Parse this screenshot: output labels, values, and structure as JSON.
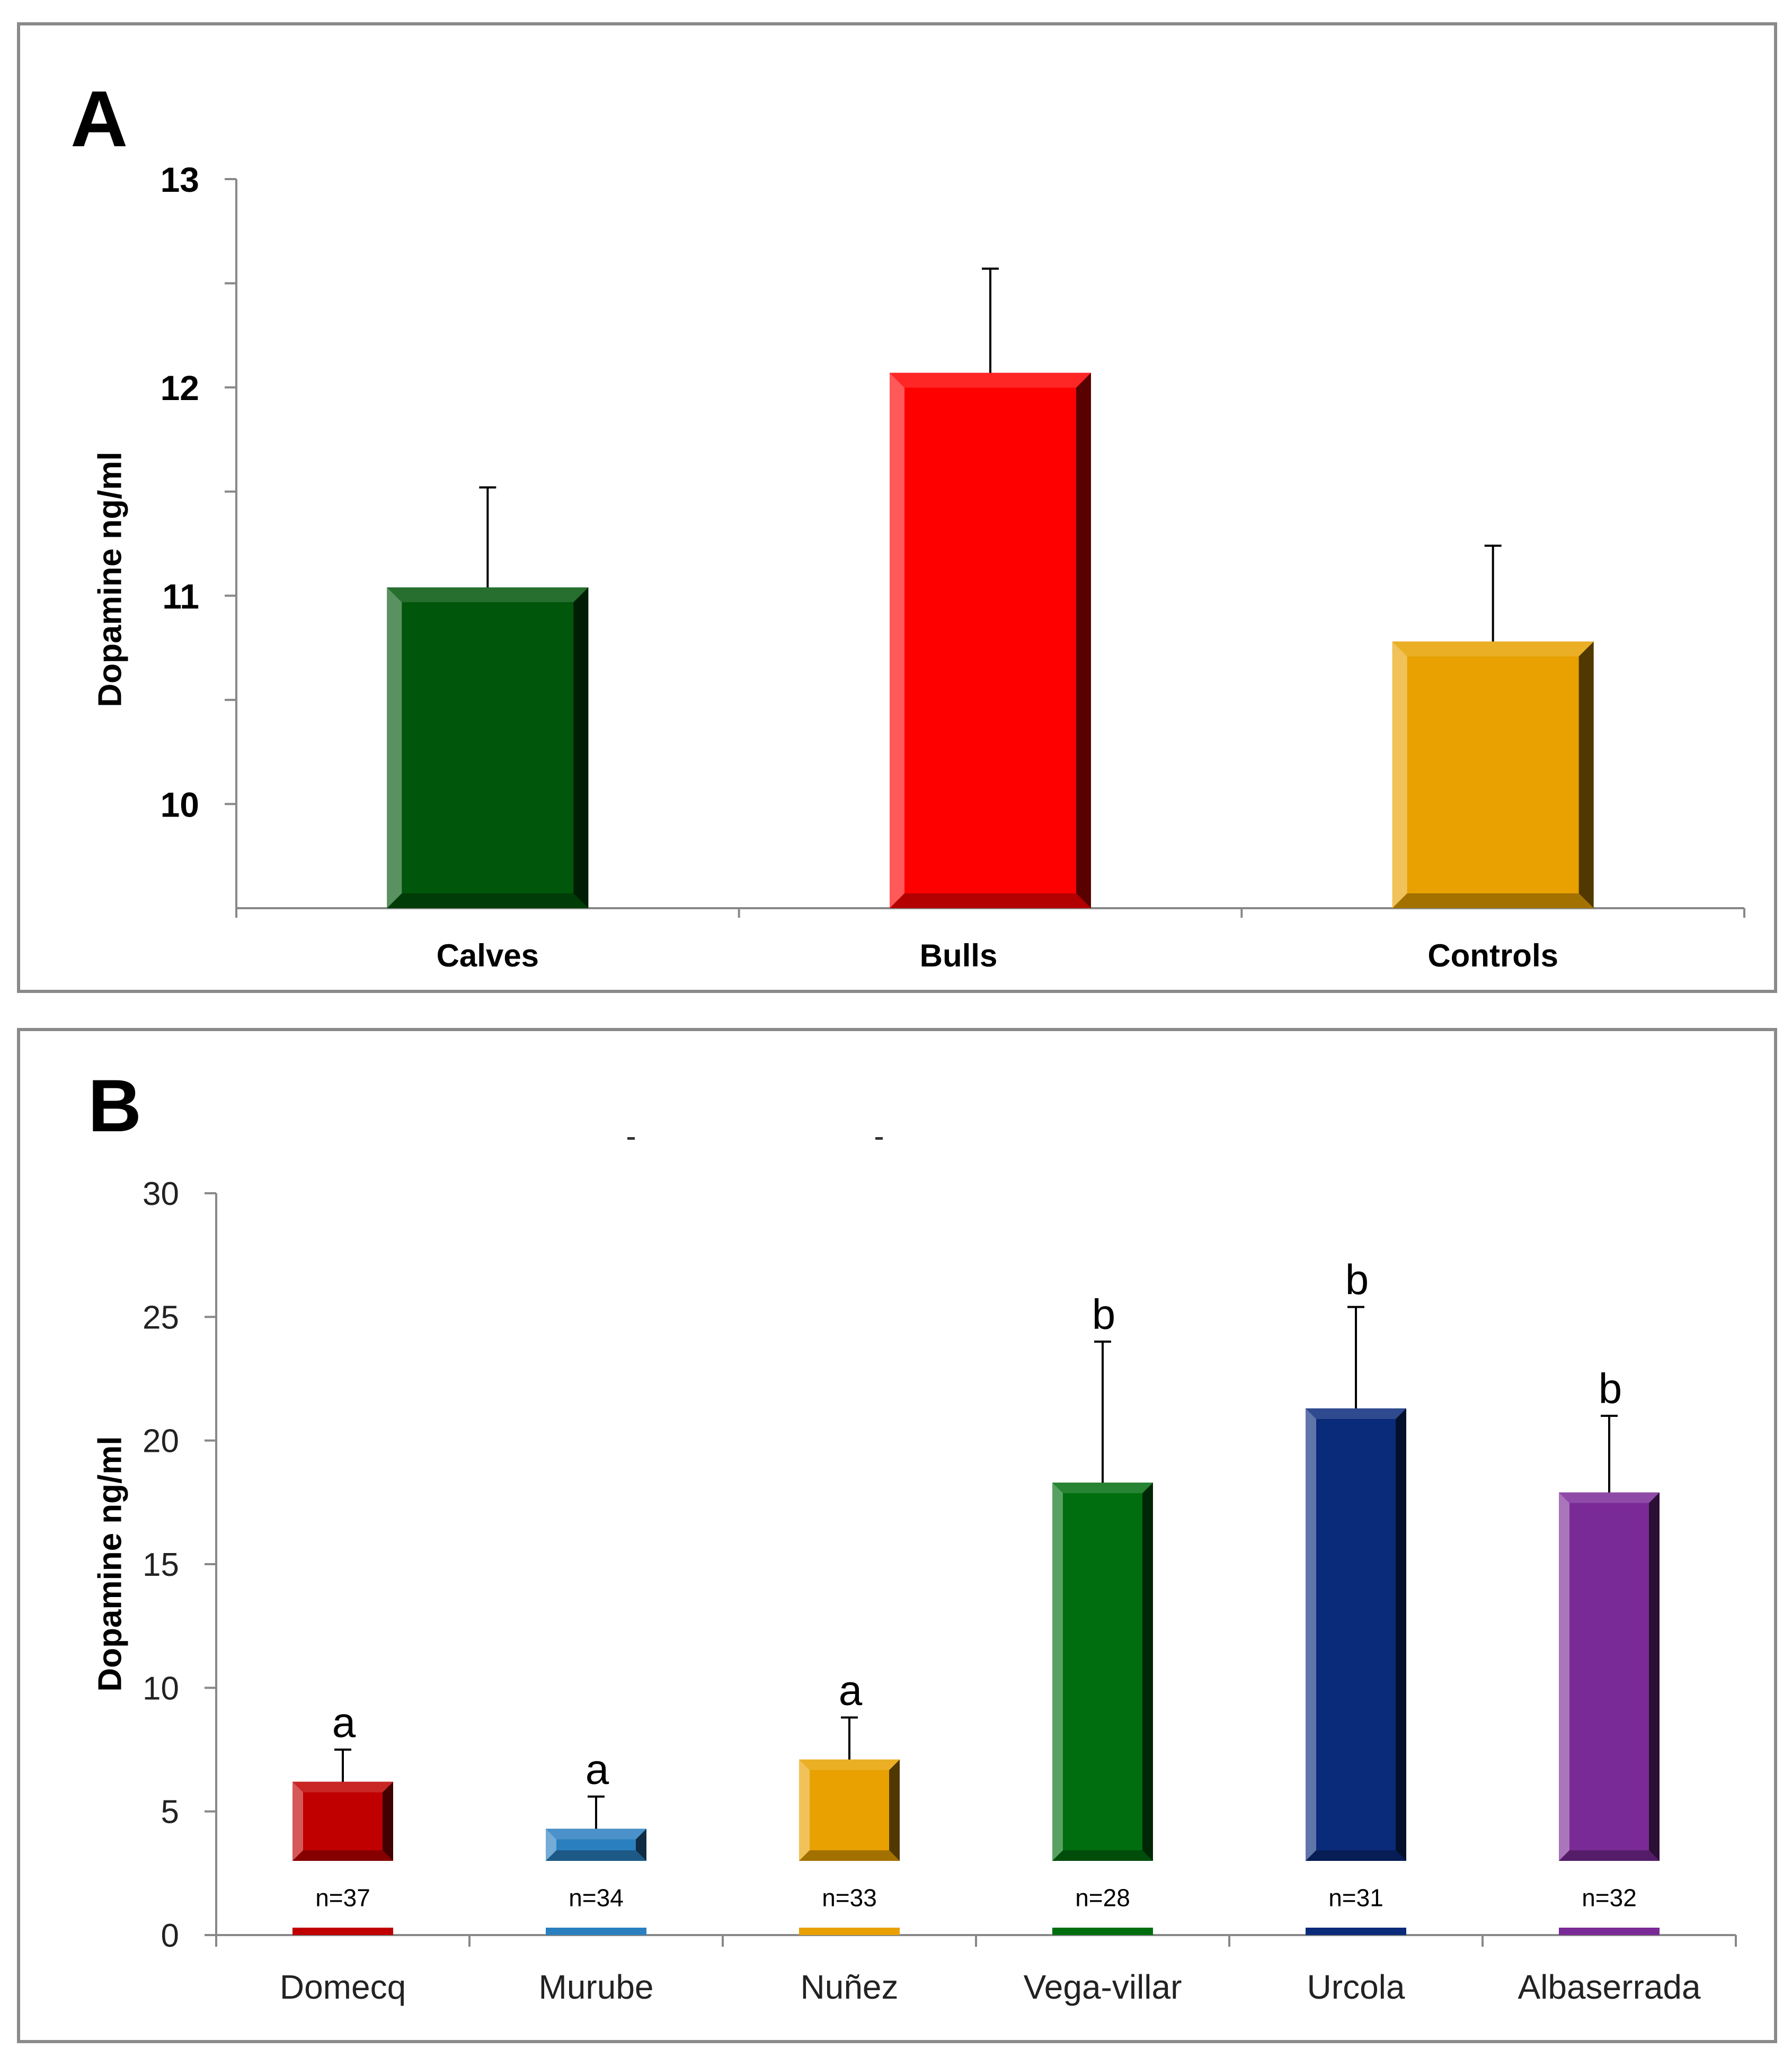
{
  "chart_data": [
    {
      "panel": "A",
      "type": "bar",
      "panel_label": "A",
      "ylabel": "Dopamine ng/ml",
      "xlabel": "",
      "ylim": [
        9.5,
        13
      ],
      "yticks": [
        10,
        11,
        12,
        13
      ],
      "categories": [
        "Calves",
        "Bulls",
        "Controls"
      ],
      "values": [
        11.04,
        12.07,
        10.78
      ],
      "errors": [
        0.48,
        0.5,
        0.46
      ],
      "colors": [
        "#00560a",
        "#ff0000",
        "#e8a100"
      ]
    },
    {
      "panel": "B",
      "type": "bar",
      "panel_label": "B",
      "ylabel": "Dopamine ng/ml",
      "xlabel": "",
      "ylim": [
        0,
        30
      ],
      "yticks": [
        0,
        5,
        10,
        15,
        20,
        25,
        30
      ],
      "categories": [
        "Domecq",
        "Murube",
        "Nuñez",
        "Vega-villar",
        "Urcola",
        "Albaserrada"
      ],
      "values": [
        6.2,
        4.3,
        7.1,
        18.3,
        21.3,
        17.9
      ],
      "errors": [
        1.3,
        1.3,
        1.7,
        5.7,
        4.1,
        3.1
      ],
      "sample_sizes": [
        "n=37",
        "n=34",
        "n=33",
        "n=28",
        "n=31",
        "n=32"
      ],
      "significance": [
        "a",
        "a",
        "a",
        "b",
        "b",
        "b"
      ],
      "colors": [
        "#c00000",
        "#2a7fbf",
        "#e8a100",
        "#006e0f",
        "#0a2a7a",
        "#7a2a96"
      ]
    }
  ]
}
